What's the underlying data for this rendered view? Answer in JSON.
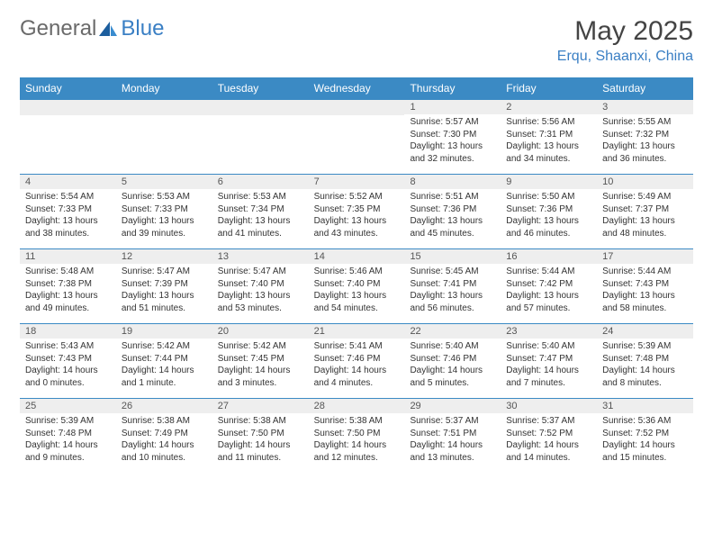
{
  "logo": {
    "text1": "General",
    "text2": "Blue"
  },
  "title": "May 2025",
  "location": "Erqu, Shaanxi, China",
  "colors": {
    "header_bg": "#3b8ac4",
    "header_text": "#ffffff",
    "date_bg": "#eeeeee",
    "border": "#3b8ac4",
    "logo_gray": "#6a6a6a",
    "logo_blue": "#3a7fc4"
  },
  "weekdays": [
    "Sunday",
    "Monday",
    "Tuesday",
    "Wednesday",
    "Thursday",
    "Friday",
    "Saturday"
  ],
  "weeks": [
    [
      {
        "date": "",
        "sunrise": "",
        "sunset": "",
        "daylight": ""
      },
      {
        "date": "",
        "sunrise": "",
        "sunset": "",
        "daylight": ""
      },
      {
        "date": "",
        "sunrise": "",
        "sunset": "",
        "daylight": ""
      },
      {
        "date": "",
        "sunrise": "",
        "sunset": "",
        "daylight": ""
      },
      {
        "date": "1",
        "sunrise": "Sunrise: 5:57 AM",
        "sunset": "Sunset: 7:30 PM",
        "daylight": "Daylight: 13 hours and 32 minutes."
      },
      {
        "date": "2",
        "sunrise": "Sunrise: 5:56 AM",
        "sunset": "Sunset: 7:31 PM",
        "daylight": "Daylight: 13 hours and 34 minutes."
      },
      {
        "date": "3",
        "sunrise": "Sunrise: 5:55 AM",
        "sunset": "Sunset: 7:32 PM",
        "daylight": "Daylight: 13 hours and 36 minutes."
      }
    ],
    [
      {
        "date": "4",
        "sunrise": "Sunrise: 5:54 AM",
        "sunset": "Sunset: 7:33 PM",
        "daylight": "Daylight: 13 hours and 38 minutes."
      },
      {
        "date": "5",
        "sunrise": "Sunrise: 5:53 AM",
        "sunset": "Sunset: 7:33 PM",
        "daylight": "Daylight: 13 hours and 39 minutes."
      },
      {
        "date": "6",
        "sunrise": "Sunrise: 5:53 AM",
        "sunset": "Sunset: 7:34 PM",
        "daylight": "Daylight: 13 hours and 41 minutes."
      },
      {
        "date": "7",
        "sunrise": "Sunrise: 5:52 AM",
        "sunset": "Sunset: 7:35 PM",
        "daylight": "Daylight: 13 hours and 43 minutes."
      },
      {
        "date": "8",
        "sunrise": "Sunrise: 5:51 AM",
        "sunset": "Sunset: 7:36 PM",
        "daylight": "Daylight: 13 hours and 45 minutes."
      },
      {
        "date": "9",
        "sunrise": "Sunrise: 5:50 AM",
        "sunset": "Sunset: 7:36 PM",
        "daylight": "Daylight: 13 hours and 46 minutes."
      },
      {
        "date": "10",
        "sunrise": "Sunrise: 5:49 AM",
        "sunset": "Sunset: 7:37 PM",
        "daylight": "Daylight: 13 hours and 48 minutes."
      }
    ],
    [
      {
        "date": "11",
        "sunrise": "Sunrise: 5:48 AM",
        "sunset": "Sunset: 7:38 PM",
        "daylight": "Daylight: 13 hours and 49 minutes."
      },
      {
        "date": "12",
        "sunrise": "Sunrise: 5:47 AM",
        "sunset": "Sunset: 7:39 PM",
        "daylight": "Daylight: 13 hours and 51 minutes."
      },
      {
        "date": "13",
        "sunrise": "Sunrise: 5:47 AM",
        "sunset": "Sunset: 7:40 PM",
        "daylight": "Daylight: 13 hours and 53 minutes."
      },
      {
        "date": "14",
        "sunrise": "Sunrise: 5:46 AM",
        "sunset": "Sunset: 7:40 PM",
        "daylight": "Daylight: 13 hours and 54 minutes."
      },
      {
        "date": "15",
        "sunrise": "Sunrise: 5:45 AM",
        "sunset": "Sunset: 7:41 PM",
        "daylight": "Daylight: 13 hours and 56 minutes."
      },
      {
        "date": "16",
        "sunrise": "Sunrise: 5:44 AM",
        "sunset": "Sunset: 7:42 PM",
        "daylight": "Daylight: 13 hours and 57 minutes."
      },
      {
        "date": "17",
        "sunrise": "Sunrise: 5:44 AM",
        "sunset": "Sunset: 7:43 PM",
        "daylight": "Daylight: 13 hours and 58 minutes."
      }
    ],
    [
      {
        "date": "18",
        "sunrise": "Sunrise: 5:43 AM",
        "sunset": "Sunset: 7:43 PM",
        "daylight": "Daylight: 14 hours and 0 minutes."
      },
      {
        "date": "19",
        "sunrise": "Sunrise: 5:42 AM",
        "sunset": "Sunset: 7:44 PM",
        "daylight": "Daylight: 14 hours and 1 minute."
      },
      {
        "date": "20",
        "sunrise": "Sunrise: 5:42 AM",
        "sunset": "Sunset: 7:45 PM",
        "daylight": "Daylight: 14 hours and 3 minutes."
      },
      {
        "date": "21",
        "sunrise": "Sunrise: 5:41 AM",
        "sunset": "Sunset: 7:46 PM",
        "daylight": "Daylight: 14 hours and 4 minutes."
      },
      {
        "date": "22",
        "sunrise": "Sunrise: 5:40 AM",
        "sunset": "Sunset: 7:46 PM",
        "daylight": "Daylight: 14 hours and 5 minutes."
      },
      {
        "date": "23",
        "sunrise": "Sunrise: 5:40 AM",
        "sunset": "Sunset: 7:47 PM",
        "daylight": "Daylight: 14 hours and 7 minutes."
      },
      {
        "date": "24",
        "sunrise": "Sunrise: 5:39 AM",
        "sunset": "Sunset: 7:48 PM",
        "daylight": "Daylight: 14 hours and 8 minutes."
      }
    ],
    [
      {
        "date": "25",
        "sunrise": "Sunrise: 5:39 AM",
        "sunset": "Sunset: 7:48 PM",
        "daylight": "Daylight: 14 hours and 9 minutes."
      },
      {
        "date": "26",
        "sunrise": "Sunrise: 5:38 AM",
        "sunset": "Sunset: 7:49 PM",
        "daylight": "Daylight: 14 hours and 10 minutes."
      },
      {
        "date": "27",
        "sunrise": "Sunrise: 5:38 AM",
        "sunset": "Sunset: 7:50 PM",
        "daylight": "Daylight: 14 hours and 11 minutes."
      },
      {
        "date": "28",
        "sunrise": "Sunrise: 5:38 AM",
        "sunset": "Sunset: 7:50 PM",
        "daylight": "Daylight: 14 hours and 12 minutes."
      },
      {
        "date": "29",
        "sunrise": "Sunrise: 5:37 AM",
        "sunset": "Sunset: 7:51 PM",
        "daylight": "Daylight: 14 hours and 13 minutes."
      },
      {
        "date": "30",
        "sunrise": "Sunrise: 5:37 AM",
        "sunset": "Sunset: 7:52 PM",
        "daylight": "Daylight: 14 hours and 14 minutes."
      },
      {
        "date": "31",
        "sunrise": "Sunrise: 5:36 AM",
        "sunset": "Sunset: 7:52 PM",
        "daylight": "Daylight: 14 hours and 15 minutes."
      }
    ]
  ]
}
